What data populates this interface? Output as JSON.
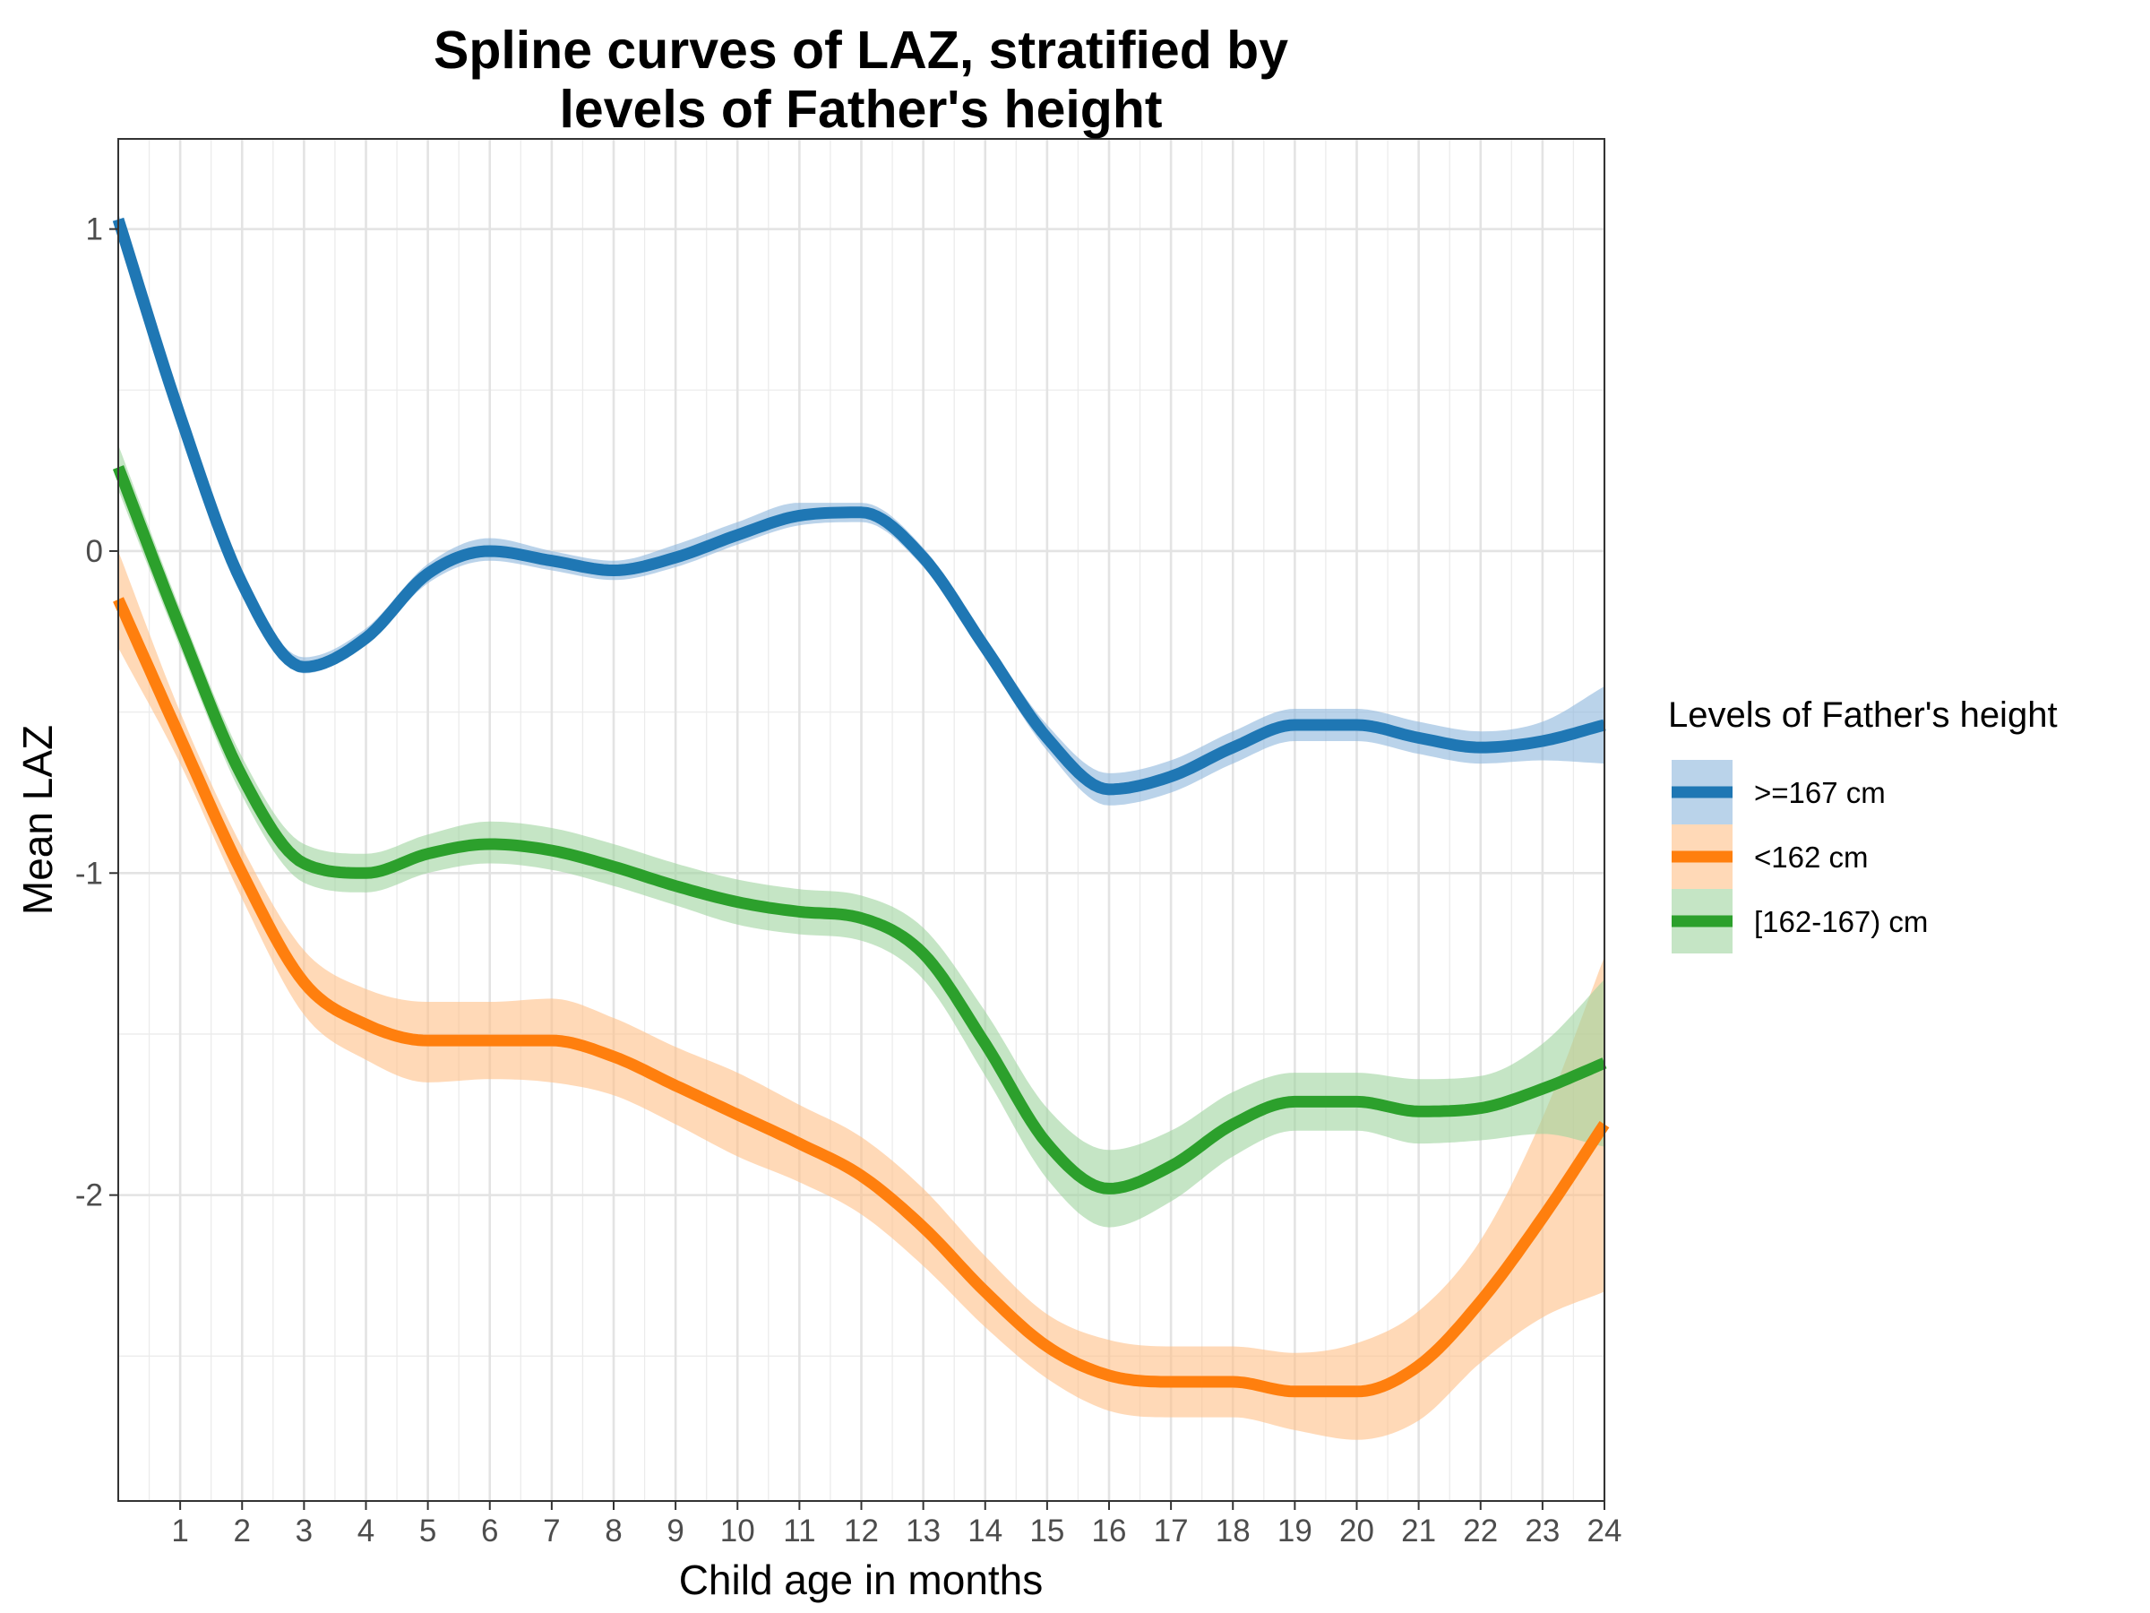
{
  "chart_data": {
    "type": "line",
    "title_lines": [
      "Spline curves of LAZ, stratified by",
      "levels of Father's height"
    ],
    "xlabel": "Child age in months",
    "ylabel": "Mean LAZ",
    "xlim": [
      0,
      24
    ],
    "ylim": [
      -2.95,
      1.28
    ],
    "x_ticks": [
      1,
      2,
      3,
      4,
      5,
      6,
      7,
      8,
      9,
      10,
      11,
      12,
      13,
      14,
      15,
      16,
      17,
      18,
      19,
      20,
      21,
      22,
      23,
      24
    ],
    "x_tick_labels": [
      "1",
      "2",
      "3",
      "4",
      "5",
      "6",
      "7",
      "8",
      "9",
      "10",
      "11",
      "12",
      "13",
      "14",
      "15",
      "16",
      "17",
      "18",
      "19",
      "20",
      "21",
      "22",
      "23",
      "24"
    ],
    "y_ticks": [
      1,
      0,
      -1,
      -2
    ],
    "y_tick_labels": [
      "1",
      "0",
      "-1",
      "-2"
    ],
    "grid": true,
    "legend": {
      "title": "Levels of Father's height",
      "position": "right",
      "entries": [
        ">=167 cm",
        "<162 cm",
        "[162-167) cm"
      ]
    },
    "x": [
      0,
      1,
      2,
      3,
      4,
      5,
      6,
      7,
      8,
      9,
      10,
      11,
      12,
      13,
      14,
      15,
      16,
      17,
      18,
      19,
      20,
      21,
      22,
      23,
      24
    ],
    "series": [
      {
        "name": ">=167 cm",
        "color": "#1f77b4",
        "band_color": "#8cb6dc",
        "values": [
          1.03,
          0.42,
          -0.1,
          -0.36,
          -0.27,
          -0.07,
          0.0,
          -0.03,
          -0.06,
          -0.02,
          0.05,
          0.11,
          0.12,
          -0.02,
          -0.3,
          -0.58,
          -0.74,
          -0.7,
          -0.61,
          -0.54,
          -0.54,
          -0.58,
          -0.61,
          -0.59,
          -0.54
        ],
        "lower": [
          1.01,
          0.4,
          -0.12,
          -0.38,
          -0.29,
          -0.1,
          -0.03,
          -0.06,
          -0.09,
          -0.05,
          0.02,
          0.08,
          0.09,
          -0.05,
          -0.33,
          -0.62,
          -0.79,
          -0.75,
          -0.66,
          -0.59,
          -0.59,
          -0.63,
          -0.66,
          -0.65,
          -0.66
        ],
        "upper": [
          1.05,
          0.44,
          -0.08,
          -0.33,
          -0.24,
          -0.04,
          0.04,
          0.0,
          -0.03,
          0.02,
          0.09,
          0.15,
          0.15,
          0.01,
          -0.27,
          -0.54,
          -0.69,
          -0.65,
          -0.56,
          -0.49,
          -0.49,
          -0.53,
          -0.56,
          -0.53,
          -0.42
        ]
      },
      {
        "name": "<162 cm",
        "color": "#ff7f0e",
        "band_color": "#ffbf87",
        "values": [
          -0.15,
          -0.58,
          -1.0,
          -1.34,
          -1.47,
          -1.52,
          -1.52,
          -1.52,
          -1.57,
          -1.66,
          -1.75,
          -1.84,
          -1.94,
          -2.1,
          -2.3,
          -2.47,
          -2.56,
          -2.58,
          -2.58,
          -2.61,
          -2.61,
          -2.53,
          -2.33,
          -2.07,
          -1.78
        ],
        "lower": [
          -0.3,
          -0.66,
          -1.08,
          -1.44,
          -1.58,
          -1.65,
          -1.64,
          -1.65,
          -1.69,
          -1.78,
          -1.88,
          -1.96,
          -2.06,
          -2.22,
          -2.41,
          -2.57,
          -2.67,
          -2.69,
          -2.69,
          -2.73,
          -2.76,
          -2.7,
          -2.52,
          -2.38,
          -2.3
        ],
        "upper": [
          0.0,
          -0.5,
          -0.92,
          -1.24,
          -1.36,
          -1.4,
          -1.4,
          -1.39,
          -1.45,
          -1.54,
          -1.62,
          -1.72,
          -1.82,
          -1.98,
          -2.19,
          -2.37,
          -2.45,
          -2.47,
          -2.47,
          -2.49,
          -2.46,
          -2.36,
          -2.14,
          -1.76,
          -1.26
        ]
      },
      {
        "name": "[162-167) cm",
        "color": "#2ca02c",
        "band_color": "#9fd49f",
        "values": [
          0.26,
          -0.24,
          -0.7,
          -0.97,
          -1.0,
          -0.94,
          -0.91,
          -0.93,
          -0.98,
          -1.04,
          -1.09,
          -1.12,
          -1.14,
          -1.25,
          -1.53,
          -1.84,
          -1.98,
          -1.91,
          -1.78,
          -1.71,
          -1.71,
          -1.74,
          -1.73,
          -1.67,
          -1.59
        ],
        "lower": [
          0.19,
          -0.3,
          -0.76,
          -1.03,
          -1.06,
          -1.0,
          -0.97,
          -0.99,
          -1.04,
          -1.1,
          -1.16,
          -1.19,
          -1.21,
          -1.33,
          -1.63,
          -1.95,
          -2.1,
          -2.02,
          -1.88,
          -1.8,
          -1.8,
          -1.84,
          -1.83,
          -1.81,
          -1.85
        ],
        "upper": [
          0.33,
          -0.18,
          -0.64,
          -0.91,
          -0.94,
          -0.88,
          -0.84,
          -0.86,
          -0.91,
          -0.97,
          -1.02,
          -1.05,
          -1.07,
          -1.17,
          -1.43,
          -1.73,
          -1.86,
          -1.8,
          -1.68,
          -1.62,
          -1.62,
          -1.64,
          -1.63,
          -1.53,
          -1.33
        ]
      }
    ]
  }
}
